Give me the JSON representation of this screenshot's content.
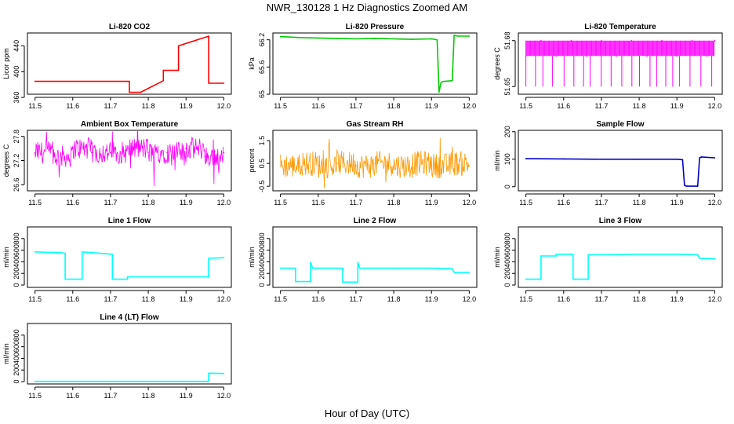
{
  "figure": {
    "title": "NWR_130128  1 Hz Diagnostics Zoomed AM",
    "xlabel": "Hour of Day (UTC)"
  },
  "chart_data": [
    {
      "id": "co2",
      "type": "line",
      "title": "Li-820 CO2",
      "ylabel": "Licor ppm",
      "color": "#ff0000",
      "xlim": [
        11.48,
        12.02
      ],
      "ylim": [
        365,
        460
      ],
      "xticks": [
        11.5,
        11.6,
        11.7,
        11.8,
        11.9,
        12.0
      ],
      "yticks": [
        360,
        400,
        440
      ],
      "x": [
        11.5,
        11.75,
        11.75,
        11.78,
        11.84,
        11.84,
        11.88,
        11.88,
        11.96,
        11.96,
        12.0
      ],
      "y": [
        385,
        385,
        368,
        368,
        386,
        402,
        402,
        440,
        455,
        382,
        382
      ]
    },
    {
      "id": "pressure",
      "type": "line",
      "title": "Li-820 Pressure",
      "ylabel": "kPa",
      "color": "#00cc00",
      "xlim": [
        11.48,
        12.02
      ],
      "ylim": [
        65.0,
        66.35
      ],
      "xticks": [
        11.5,
        11.6,
        11.7,
        11.8,
        11.9,
        12.0
      ],
      "yticks": [
        65.0,
        65.6,
        66.2
      ],
      "x": [
        11.5,
        11.55,
        11.6,
        11.65,
        11.7,
        11.75,
        11.8,
        11.85,
        11.9,
        11.915,
        11.92,
        11.925,
        11.93,
        11.955,
        11.96,
        11.97,
        12.0
      ],
      "y": [
        66.27,
        66.25,
        66.24,
        66.23,
        66.22,
        66.23,
        66.22,
        66.21,
        66.22,
        66.2,
        65.05,
        65.25,
        65.28,
        65.3,
        66.3,
        66.28,
        66.28
      ]
    },
    {
      "id": "temperature",
      "type": "line",
      "title": "Li-820 Temperature",
      "ylabel": "degrees C",
      "color": "#ff00ff",
      "xlim": [
        11.48,
        12.02
      ],
      "ylim": [
        51.645,
        51.685
      ],
      "xticks": [
        11.5,
        11.6,
        11.7,
        11.8,
        11.9,
        12.0
      ],
      "yticks": [
        51.65,
        51.68
      ],
      "x": [
        11.5,
        11.54,
        11.58,
        11.62,
        11.66,
        11.7,
        11.74,
        11.78,
        11.82,
        11.86,
        11.9,
        11.94,
        11.98,
        12.0
      ],
      "y": [
        51.67,
        51.68,
        51.67,
        51.68,
        51.67,
        51.68,
        51.67,
        51.68,
        51.67,
        51.68,
        51.67,
        51.68,
        51.67,
        51.68
      ]
    },
    {
      "id": "ambient_box",
      "type": "line",
      "title": "Ambient Box Temperature",
      "ylabel": "degrees C",
      "color": "#ff00ff",
      "xlim": [
        11.48,
        12.02
      ],
      "ylim": [
        26.45,
        27.95
      ],
      "xticks": [
        11.5,
        11.6,
        11.7,
        11.8,
        11.9,
        12.0
      ],
      "yticks": [
        26.6,
        27.2,
        27.8
      ],
      "x": [
        11.5,
        11.55,
        11.6,
        11.65,
        11.7,
        11.75,
        11.8,
        11.85,
        11.9,
        11.95,
        12.0
      ],
      "y": [
        27.4,
        27.3,
        27.5,
        27.4,
        27.4,
        27.5,
        27.4,
        27.4,
        27.5,
        27.3,
        27.4
      ]
    },
    {
      "id": "gas_rh",
      "type": "line",
      "title": "Gas Stream RH",
      "ylabel": "percent",
      "color": "#ff9900",
      "xlim": [
        11.48,
        12.02
      ],
      "ylim": [
        -0.7,
        1.95
      ],
      "xticks": [
        11.5,
        11.6,
        11.7,
        11.8,
        11.9,
        12.0
      ],
      "yticks": [
        -0.5,
        0.5,
        1.5
      ],
      "x": [
        11.5,
        11.55,
        11.6,
        11.65,
        11.7,
        11.75,
        11.8,
        11.85,
        11.9,
        11.95,
        12.0
      ],
      "y": [
        0.4,
        0.5,
        0.4,
        0.5,
        0.4,
        0.5,
        0.4,
        0.5,
        0.4,
        0.5,
        0.4
      ]
    },
    {
      "id": "sample_flow",
      "type": "line",
      "title": "Sample Flow",
      "ylabel": "ml/min",
      "color": "#0000cc",
      "xlim": [
        11.48,
        12.02
      ],
      "ylim": [
        -15,
        205
      ],
      "xticks": [
        11.5,
        11.6,
        11.7,
        11.8,
        11.9,
        12.0
      ],
      "yticks": [
        0,
        100,
        200
      ],
      "x": [
        11.5,
        11.6,
        11.7,
        11.8,
        11.9,
        11.915,
        11.92,
        11.925,
        11.955,
        11.96,
        11.965,
        12.0
      ],
      "y": [
        102,
        101,
        100,
        100,
        100,
        98,
        5,
        2,
        2,
        105,
        108,
        105
      ]
    },
    {
      "id": "line1",
      "type": "line",
      "title": "Line 1 Flow",
      "ylabel": "ml/min",
      "color": "#00ffff",
      "xlim": [
        11.48,
        12.02
      ],
      "ylim": [
        -40,
        1000
      ],
      "xticks": [
        11.5,
        11.6,
        11.7,
        11.8,
        11.9,
        12.0
      ],
      "yticks": [
        0,
        200,
        400,
        600,
        800
      ],
      "x": [
        11.5,
        11.57,
        11.58,
        11.58,
        11.625,
        11.625,
        11.705,
        11.705,
        11.745,
        11.745,
        11.96,
        11.96,
        12.0
      ],
      "y": [
        570,
        555,
        545,
        100,
        100,
        570,
        530,
        100,
        100,
        140,
        140,
        460,
        470
      ]
    },
    {
      "id": "line2",
      "type": "line",
      "title": "Line 2 Flow",
      "ylabel": "ml/min",
      "color": "#00ffff",
      "xlim": [
        11.48,
        12.02
      ],
      "ylim": [
        -40,
        1000
      ],
      "xticks": [
        11.5,
        11.6,
        11.7,
        11.8,
        11.9,
        12.0
      ],
      "yticks": [
        0,
        200,
        400,
        600,
        800
      ],
      "x": [
        11.5,
        11.54,
        11.54,
        11.58,
        11.58,
        11.585,
        11.665,
        11.665,
        11.705,
        11.705,
        11.71,
        11.8,
        11.9,
        11.955,
        11.96,
        12.0
      ],
      "y": [
        290,
        290,
        60,
        60,
        390,
        290,
        290,
        50,
        50,
        390,
        290,
        290,
        290,
        280,
        220,
        220
      ]
    },
    {
      "id": "line3",
      "type": "line",
      "title": "Line 3 Flow",
      "ylabel": "ml/min",
      "color": "#00ffff",
      "xlim": [
        11.48,
        12.02
      ],
      "ylim": [
        -40,
        1000
      ],
      "xticks": [
        11.5,
        11.6,
        11.7,
        11.8,
        11.9,
        12.0
      ],
      "yticks": [
        0,
        200,
        400,
        600,
        800
      ],
      "x": [
        11.5,
        11.54,
        11.54,
        11.58,
        11.58,
        11.625,
        11.625,
        11.665,
        11.665,
        11.7,
        11.8,
        11.9,
        11.955,
        11.96,
        12.0
      ],
      "y": [
        100,
        100,
        500,
        500,
        530,
        530,
        100,
        100,
        520,
        520,
        530,
        530,
        520,
        460,
        450
      ]
    },
    {
      "id": "line4",
      "type": "line",
      "title": "Line 4 (LT) Flow",
      "ylabel": "ml/min",
      "color": "#00ffff",
      "xlim": [
        11.48,
        12.02
      ],
      "ylim": [
        -40,
        1000
      ],
      "xticks": [
        11.5,
        11.6,
        11.7,
        11.8,
        11.9,
        12.0
      ],
      "yticks": [
        0,
        200,
        400,
        600,
        800
      ],
      "x": [
        11.5,
        11.7,
        11.955,
        11.96,
        11.96,
        12.0
      ],
      "y": [
        5,
        5,
        5,
        10,
        145,
        140
      ]
    }
  ]
}
